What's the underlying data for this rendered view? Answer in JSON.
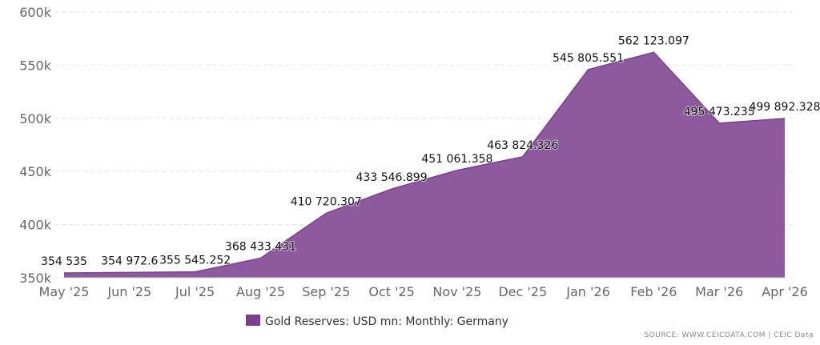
{
  "chart_data": {
    "type": "area",
    "title": "",
    "xlabel": "",
    "ylabel": "",
    "categories": [
      "May '25",
      "Jun '25",
      "Jul '25",
      "Aug '25",
      "Sep '25",
      "Oct '25",
      "Nov '25",
      "Dec '25",
      "Jan '26",
      "Feb '26",
      "Mar '26",
      "Apr '26"
    ],
    "series": [
      {
        "name": "Gold Reserves: USD mn: Monthly: Germany",
        "values": [
          354535.0,
          354972.6,
          355545.252,
          368433.431,
          410720.307,
          433546.899,
          451061.358,
          463824.326,
          545805.551,
          562123.097,
          495473.235,
          499892.328
        ],
        "labels": [
          "354 535",
          "354 972.6",
          "355 545.252",
          "368 433.431",
          "410 720.307",
          "433 546.899",
          "451 061.358",
          "463 824.326",
          "545 805.551",
          "562 123.097",
          "495 473.235",
          "499 892.328"
        ]
      }
    ],
    "ylim": [
      350000,
      600000
    ],
    "yticks": [
      "350k",
      "400k",
      "450k",
      "500k",
      "550k",
      "600k"
    ],
    "grid": true,
    "legend_position": "bottom-center",
    "colors": {
      "fill": "#8e5a9e",
      "line": "#7b3f8e",
      "legend_swatch": "#7b3f8e",
      "grid": "#e3e3e3"
    }
  },
  "source": "SOURCE: WWW.CEICDATA.COM | CEIC Data"
}
